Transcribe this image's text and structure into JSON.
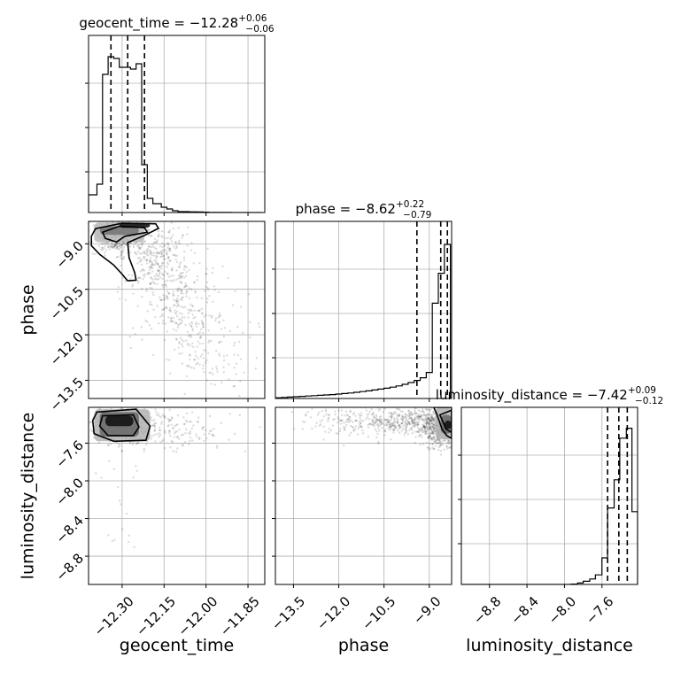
{
  "chart_data": {
    "type": "corner",
    "parameters": [
      "geocent_time",
      "phase",
      "luminosity_distance"
    ],
    "titles": [
      {
        "param": "geocent_time",
        "prefix": "geocent_time = ",
        "median": "−12.28",
        "plus": "+0.06",
        "minus": "−0.06"
      },
      {
        "param": "phase",
        "prefix": "phase = ",
        "median": "−8.62",
        "plus": "+0.22",
        "minus": "−0.79"
      },
      {
        "param": "luminosity_distance",
        "prefix": "luminosity_distance = ",
        "median": "−7.42",
        "plus": "+0.09",
        "minus": "−0.12"
      }
    ],
    "ranges": {
      "geocent_time": [
        -12.42,
        -11.79
      ],
      "phase": [
        -14.1,
        -8.26
      ],
      "luminosity_distance": [
        -9.1,
        -7.22
      ]
    },
    "ticks": {
      "geocent_time": [
        -12.3,
        -12.15,
        -12.0,
        -11.85
      ],
      "phase": [
        -13.5,
        -12.0,
        -10.5,
        -9.0
      ],
      "luminosity_distance": [
        -8.8,
        -8.4,
        -8.0,
        -7.6
      ]
    },
    "tick_labels": {
      "geocent_time": [
        "−12.30",
        "−12.15",
        "−12.00",
        "−11.85"
      ],
      "phase": [
        "−13.5",
        "−12.0",
        "−10.5",
        "−9.0"
      ],
      "luminosity_distance": [
        "−8.8",
        "−8.4",
        "−8.0",
        "−7.6"
      ]
    },
    "quantiles": {
      "geocent_time": [
        -12.34,
        -12.28,
        -12.22
      ],
      "phase": [
        -9.41,
        -8.62,
        -8.4
      ],
      "luminosity_distance": [
        -7.54,
        -7.42,
        -7.33
      ]
    },
    "histograms": {
      "geocent_time": {
        "edges": [
          -12.42,
          -12.39,
          -12.37,
          -12.35,
          -12.33,
          -12.31,
          -12.29,
          -12.27,
          -12.25,
          -12.23,
          -12.21,
          -12.19,
          -12.16,
          -12.14,
          -12.12,
          -12.1,
          -12.08,
          -12.06,
          -12.03,
          -12.01,
          -11.99,
          -11.97,
          -11.95,
          -11.93,
          -11.91,
          -11.89,
          -11.86,
          -11.84,
          -11.82,
          -11.8
        ],
        "counts": [
          0.1,
          0.16,
          0.78,
          0.88,
          0.87,
          0.82,
          0.82,
          0.81,
          0.84,
          0.27,
          0.08,
          0.05,
          0.03,
          0.02,
          0.01,
          0.005,
          0.005,
          0.004,
          0.003,
          0.002,
          0.001,
          0.001,
          0.001,
          0.001,
          0,
          0,
          0,
          0,
          0
        ]
      },
      "phase": {
        "edges": [
          -14.1,
          -13.9,
          -13.7,
          -13.5,
          -13.3,
          -13.1,
          -12.9,
          -12.7,
          -12.5,
          -12.3,
          -12.1,
          -11.9,
          -11.7,
          -11.5,
          -11.3,
          -11.1,
          -10.9,
          -10.7,
          -10.5,
          -10.3,
          -10.1,
          -9.9,
          -9.7,
          -9.5,
          -9.3,
          -9.1,
          -8.9,
          -8.7,
          -8.5,
          -8.3
        ],
        "counts": [
          0.004,
          0.006,
          0.008,
          0.01,
          0.012,
          0.014,
          0.016,
          0.018,
          0.02,
          0.022,
          0.025,
          0.028,
          0.031,
          0.035,
          0.039,
          0.043,
          0.048,
          0.053,
          0.058,
          0.064,
          0.071,
          0.08,
          0.09,
          0.102,
          0.117,
          0.147,
          0.538,
          0.707,
          0.87
        ]
      },
      "luminosity_distance": {
        "edges": [
          -9.1,
          -9.03,
          -8.97,
          -8.9,
          -8.84,
          -8.77,
          -8.71,
          -8.64,
          -8.58,
          -8.51,
          -8.45,
          -8.38,
          -8.32,
          -8.25,
          -8.19,
          -8.12,
          -8.06,
          -7.99,
          -7.93,
          -7.86,
          -7.8,
          -7.73,
          -7.67,
          -7.6,
          -7.54,
          -7.47,
          -7.41,
          -7.34,
          -7.28,
          -7.22
        ],
        "counts": [
          0,
          0,
          0,
          0,
          0,
          0,
          0,
          0,
          0,
          0,
          0,
          0,
          0,
          0,
          0,
          0,
          0,
          0,
          0.002,
          0.008,
          0.018,
          0.031,
          0.054,
          0.15,
          0.432,
          0.591,
          0.826,
          0.882,
          0.411
        ]
      }
    },
    "contours": {
      "geocent_time|phase": [
        [
          [
            -12.395,
            -8.5
          ],
          [
            -12.3,
            -8.32
          ],
          [
            -12.18,
            -8.34
          ],
          [
            -12.17,
            -8.49
          ],
          [
            -12.22,
            -8.72
          ],
          [
            -12.28,
            -8.96
          ],
          [
            -12.275,
            -9.46
          ],
          [
            -12.255,
            -9.95
          ],
          [
            -12.25,
            -10.2
          ],
          [
            -12.28,
            -10.22
          ],
          [
            -12.3,
            -10.0
          ],
          [
            -12.33,
            -9.7
          ],
          [
            -12.38,
            -9.35
          ],
          [
            -12.41,
            -9.06
          ],
          [
            -12.41,
            -8.75
          ],
          [
            -12.395,
            -8.5
          ]
        ],
        [
          [
            -12.37,
            -8.62
          ],
          [
            -12.31,
            -8.42
          ],
          [
            -12.22,
            -8.47
          ],
          [
            -12.21,
            -8.62
          ],
          [
            -12.29,
            -8.75
          ],
          [
            -12.32,
            -8.94
          ],
          [
            -12.36,
            -8.82
          ],
          [
            -12.37,
            -8.62
          ]
        ]
      ],
      "geocent_time|luminosity_distance": [
        [
          [
            -12.39,
            -7.27
          ],
          [
            -12.25,
            -7.24
          ],
          [
            -12.2,
            -7.42
          ],
          [
            -12.215,
            -7.57
          ],
          [
            -12.33,
            -7.58
          ],
          [
            -12.4,
            -7.5
          ],
          [
            -12.405,
            -7.36
          ],
          [
            -12.39,
            -7.27
          ]
        ],
        [
          [
            -12.37,
            -7.31
          ],
          [
            -12.26,
            -7.3
          ],
          [
            -12.24,
            -7.43
          ],
          [
            -12.26,
            -7.52
          ],
          [
            -12.35,
            -7.52
          ],
          [
            -12.38,
            -7.42
          ],
          [
            -12.37,
            -7.31
          ]
        ]
      ],
      "phase|luminosity_distance": [
        [
          [
            -8.85,
            -7.22
          ],
          [
            -8.74,
            -7.3
          ],
          [
            -8.58,
            -7.45
          ],
          [
            -8.42,
            -7.52
          ],
          [
            -8.26,
            -7.55
          ],
          [
            -8.26,
            -7.22
          ],
          [
            -8.85,
            -7.22
          ]
        ],
        [
          [
            -8.65,
            -7.3
          ],
          [
            -8.55,
            -7.37
          ],
          [
            -8.45,
            -7.45
          ],
          [
            -8.3,
            -7.48
          ],
          [
            -8.26,
            -7.48
          ],
          [
            -8.26,
            -7.25
          ],
          [
            -8.65,
            -7.3
          ]
        ]
      ]
    },
    "density_cores": {
      "geocent_time|phase": [
        {
          "x": [
            -12.31,
            -12.2
          ],
          "y": [
            -8.47,
            -8.32
          ],
          "level": 0.95
        },
        {
          "x": [
            -12.38,
            -12.24
          ],
          "y": [
            -8.7,
            -8.42
          ],
          "level": 0.55
        },
        {
          "x": [
            -12.4,
            -12.22
          ],
          "y": [
            -8.95,
            -8.3
          ],
          "level": 0.28
        }
      ],
      "geocent_time|luminosity_distance": [
        {
          "x": [
            -12.36,
            -12.26
          ],
          "y": [
            -7.42,
            -7.31
          ],
          "level": 0.95
        },
        {
          "x": [
            -12.38,
            -12.24
          ],
          "y": [
            -7.53,
            -7.27
          ],
          "level": 0.6
        },
        {
          "x": [
            -12.4,
            -12.2
          ],
          "y": [
            -7.58,
            -7.24
          ],
          "level": 0.3
        }
      ],
      "phase|luminosity_distance": [
        {
          "x": [
            -8.5,
            -8.26
          ],
          "y": [
            -7.45,
            -7.36
          ],
          "level": 0.95
        },
        {
          "x": [
            -8.62,
            -8.26
          ],
          "y": [
            -7.5,
            -7.3
          ],
          "level": 0.6
        },
        {
          "x": [
            -8.8,
            -8.26
          ],
          "y": [
            -7.56,
            -7.22
          ],
          "level": 0.3
        }
      ]
    },
    "sample_clouds": {
      "geocent_time|phase": [
        {
          "x": -12.32,
          "y": -8.7,
          "sx": 0.04,
          "sy": 0.3,
          "n": 450
        },
        {
          "x": -12.18,
          "y": -9.4,
          "sx": 0.06,
          "sy": 0.6,
          "n": 300
        },
        {
          "x": -12.1,
          "y": -11.0,
          "sx": 0.07,
          "sy": 0.9,
          "n": 260
        },
        {
          "x": -11.98,
          "y": -12.5,
          "sx": 0.08,
          "sy": 0.7,
          "n": 120
        }
      ],
      "geocent_time|luminosity_distance": [
        {
          "x": -12.3,
          "y": -7.42,
          "sx": 0.05,
          "sy": 0.09,
          "n": 650
        },
        {
          "x": -12.12,
          "y": -7.45,
          "sx": 0.1,
          "sy": 0.12,
          "n": 160
        },
        {
          "x": -12.3,
          "y": -8.2,
          "sx": 0.05,
          "sy": 0.4,
          "n": 20
        }
      ],
      "phase|luminosity_distance": [
        {
          "x": -9.2,
          "y": -7.38,
          "sx": 0.9,
          "sy": 0.07,
          "n": 500
        },
        {
          "x": -11.2,
          "y": -7.35,
          "sx": 1.0,
          "sy": 0.09,
          "n": 200
        },
        {
          "x": -8.6,
          "y": -7.5,
          "sx": 0.3,
          "sy": 0.08,
          "n": 250
        }
      ]
    }
  }
}
